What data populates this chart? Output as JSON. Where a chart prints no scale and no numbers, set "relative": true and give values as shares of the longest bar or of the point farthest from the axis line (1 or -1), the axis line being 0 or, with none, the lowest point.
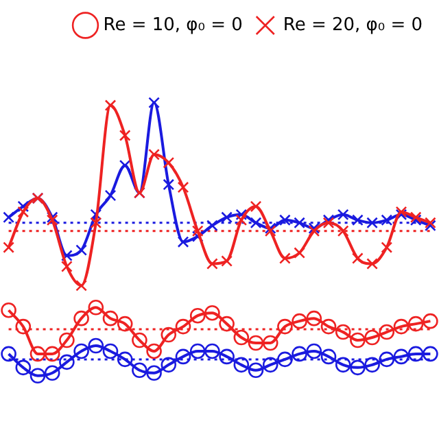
{
  "chart_data": {
    "type": "line",
    "relative": true,
    "categories": [
      null,
      null,
      null,
      null,
      null,
      null,
      null,
      null,
      null,
      null,
      null,
      null,
      null,
      null,
      null,
      null,
      null,
      null,
      null,
      null,
      null,
      null,
      null,
      null,
      null,
      null,
      null,
      null,
      null,
      null
    ],
    "series": [
      {
        "name": "Re = 10, φ₀ = 0",
        "color": "#ee2222",
        "marker": "circle",
        "values": [
          0.24,
          0.18,
          0.08,
          0.08,
          0.13,
          0.21,
          0.25,
          0.21,
          0.19,
          0.13,
          0.09,
          0.15,
          0.18,
          0.22,
          0.23,
          0.19,
          0.14,
          0.12,
          0.12,
          0.18,
          0.2,
          0.21,
          0.18,
          0.16,
          0.13,
          0.14,
          0.16,
          0.18,
          0.19,
          0.2
        ]
      },
      {
        "name": "Re = 20, φ₀ = 0",
        "color": "#ee2222",
        "marker": "cross",
        "values": [
          0.47,
          0.6,
          0.65,
          0.57,
          0.4,
          0.33,
          0.56,
          0.99,
          0.88,
          0.67,
          0.81,
          0.78,
          0.69,
          0.53,
          0.41,
          0.42,
          0.57,
          0.62,
          0.53,
          0.43,
          0.45,
          0.53,
          0.56,
          0.53,
          0.43,
          0.41,
          0.47,
          0.6,
          0.58,
          0.56
        ]
      },
      {
        "color": "#1a1adf",
        "marker": "circle",
        "values": [
          0.08,
          0.03,
          0.0,
          0.01,
          0.05,
          0.09,
          0.11,
          0.09,
          0.06,
          0.02,
          0.01,
          0.04,
          0.07,
          0.09,
          0.09,
          0.07,
          0.04,
          0.02,
          0.04,
          0.06,
          0.08,
          0.09,
          0.07,
          0.04,
          0.03,
          0.04,
          0.06,
          0.07,
          0.08,
          0.08
        ]
      },
      {
        "color": "#1a1adf",
        "marker": "cross",
        "values": [
          0.58,
          0.62,
          0.65,
          0.58,
          0.44,
          0.46,
          0.59,
          0.66,
          0.77,
          0.67,
          1.0,
          0.7,
          0.49,
          0.51,
          0.55,
          0.58,
          0.59,
          0.56,
          0.54,
          0.57,
          0.56,
          0.54,
          0.57,
          0.59,
          0.57,
          0.56,
          0.57,
          0.59,
          0.57,
          0.55
        ]
      }
    ],
    "ref_lines": [
      {
        "axis": "y",
        "value": 0.56,
        "color": "#1a1adf",
        "line_style": "dotted"
      },
      {
        "axis": "y",
        "value": 0.53,
        "color": "#ee2222",
        "line_style": "dotted"
      },
      {
        "axis": "y",
        "value": 0.17,
        "color": "#ee2222",
        "line_style": "dotted"
      },
      {
        "axis": "y",
        "value": 0.06,
        "color": "#1a1adf",
        "line_style": "dotted"
      }
    ],
    "legend": "top right",
    "grid": false,
    "tick_labels": false
  }
}
